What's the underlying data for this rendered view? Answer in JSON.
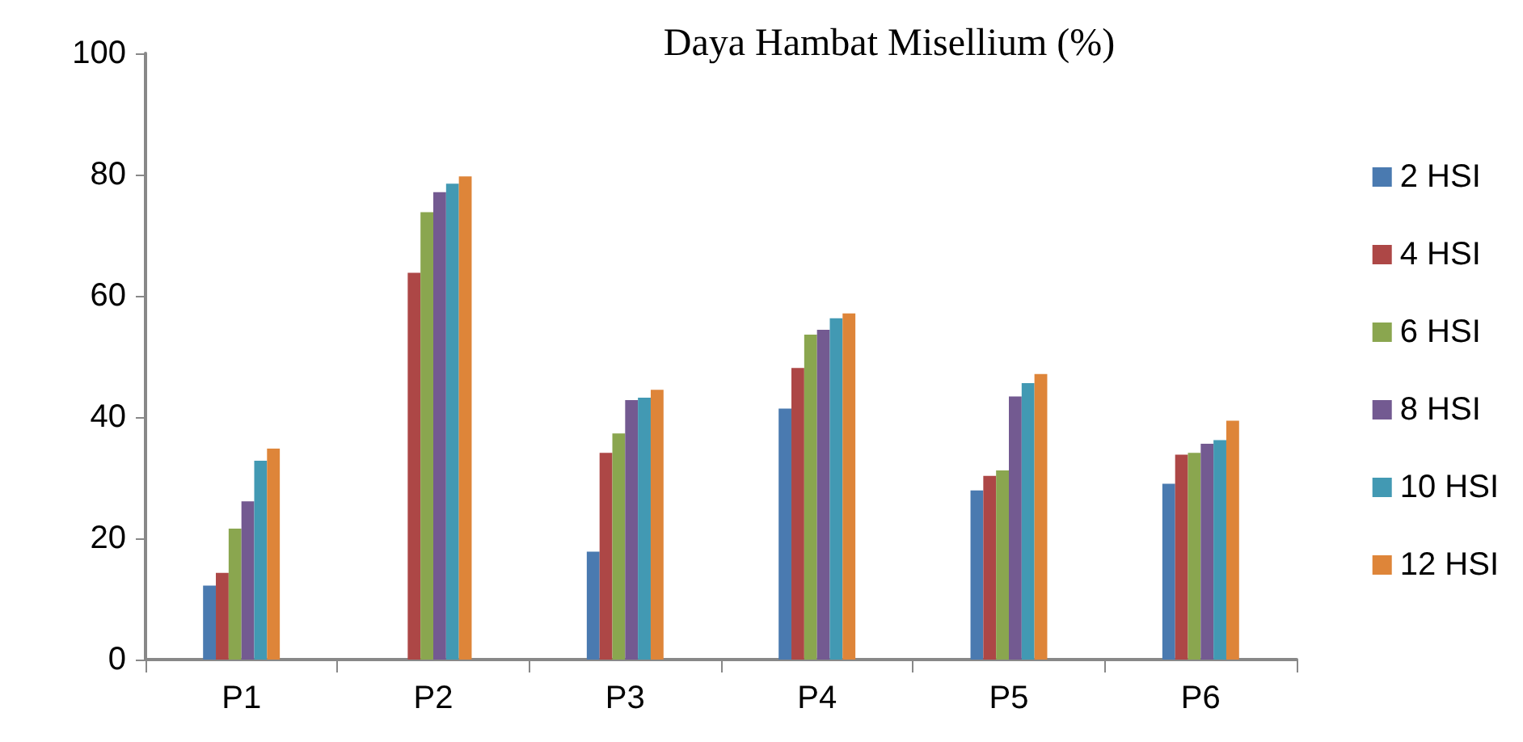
{
  "chart_data": {
    "type": "bar",
    "title": "Daya Hambat Misellium (%)",
    "categories": [
      "P1",
      "P2",
      "P3",
      "P4",
      "P5",
      "P6"
    ],
    "series": [
      {
        "name": "2 HSI",
        "color": "#4a7ab0",
        "values": [
          12.2,
          null,
          17.8,
          41.4,
          27.9,
          29.0
        ]
      },
      {
        "name": "4 HSI",
        "color": "#ad4746",
        "values": [
          14.3,
          63.8,
          34.1,
          48.1,
          30.3,
          33.8
        ]
      },
      {
        "name": "6 HSI",
        "color": "#8aa64f",
        "values": [
          21.6,
          73.8,
          37.3,
          53.6,
          31.2,
          34.1
        ]
      },
      {
        "name": "8 HSI",
        "color": "#735a91",
        "values": [
          26.1,
          77.1,
          42.8,
          54.4,
          43.4,
          35.6
        ]
      },
      {
        "name": "10 HSI",
        "color": "#4299b3",
        "values": [
          32.8,
          78.5,
          43.2,
          56.3,
          45.6,
          36.2
        ]
      },
      {
        "name": "12 HSI",
        "color": "#de8539",
        "values": [
          34.8,
          79.7,
          44.5,
          57.1,
          47.1,
          39.4
        ]
      }
    ],
    "ylim": [
      0,
      100
    ],
    "yticks": [
      0,
      20,
      40,
      60,
      80,
      100
    ],
    "grid": false,
    "legend": "right"
  }
}
